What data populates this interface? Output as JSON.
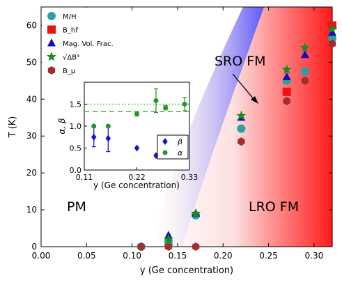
{
  "chart_data": [
    {
      "type": "scatter",
      "xlabel": "y (Ge concentration)",
      "ylabel": "T (K)",
      "xlim": [
        0.0,
        0.32
      ],
      "ylim": [
        0,
        65
      ],
      "xticks": [
        "0.00",
        "0.05",
        "0.10",
        "0.15",
        "0.20",
        "0.25",
        "0.30"
      ],
      "yticks": [
        "0",
        "10",
        "20",
        "30",
        "40",
        "50",
        "60"
      ],
      "grid": false,
      "legend_position": "top-left",
      "regions": [
        {
          "label": "PM",
          "x": 0.04,
          "y": 12
        },
        {
          "label": "LRO FM",
          "x": 0.285,
          "y": 12
        },
        {
          "label": "SRO FM",
          "x": 0.235,
          "y": 50
        }
      ],
      "series": [
        {
          "name": "M/H",
          "marker": "circle",
          "color": "#2ca0a0",
          "points": [
            [
              0.11,
              0.0
            ],
            [
              0.14,
              0.5
            ],
            [
              0.14,
              1.5
            ],
            [
              0.17,
              8.5
            ],
            [
              0.22,
              32.0
            ],
            [
              0.27,
              45.0
            ],
            [
              0.29,
              47.5
            ],
            [
              0.32,
              56.5
            ]
          ]
        },
        {
          "name": "B_hf",
          "marker": "square",
          "color": "#ee1111",
          "points": [
            [
              0.27,
              42.0
            ],
            [
              0.32,
              60.0
            ]
          ]
        },
        {
          "name": "Mag. Vol. Frac.",
          "marker": "triangle",
          "color": "#1010bb",
          "points": [
            [
              0.14,
              3.0
            ],
            [
              0.17,
              9.0
            ],
            [
              0.22,
              35.0
            ],
            [
              0.27,
              46.0
            ],
            [
              0.29,
              52.0
            ],
            [
              0.32,
              58.0
            ]
          ]
        },
        {
          "name": "√ΔB³",
          "marker": "star",
          "color": "#1a8c1a",
          "points": [
            [
              0.14,
              2.0
            ],
            [
              0.17,
              9.0
            ],
            [
              0.22,
              35.5
            ],
            [
              0.27,
              48.0
            ],
            [
              0.29,
              54.0
            ],
            [
              0.32,
              59.0
            ]
          ]
        },
        {
          "name": "B_μ",
          "marker": "hexagon",
          "color": "#a03030",
          "points": [
            [
              0.11,
              0.0
            ],
            [
              0.14,
              0.0
            ],
            [
              0.17,
              0.0
            ],
            [
              0.22,
              28.5
            ],
            [
              0.27,
              39.5
            ],
            [
              0.29,
              45.0
            ],
            [
              0.32,
              55.0
            ]
          ]
        }
      ]
    },
    {
      "type": "scatter",
      "xlabel": "y (Ge concentration)",
      "ylabel": "α, β",
      "xlim": [
        0.11,
        0.33
      ],
      "ylim": [
        0.0,
        2.0
      ],
      "xticks": [
        "0.11",
        "0.22",
        "0.33"
      ],
      "yticks": [
        "0.0",
        "0.5",
        "1.0",
        "1.5"
      ],
      "legend_position": "right",
      "reference_lines": [
        {
          "y": 1.5,
          "style": "dotted",
          "color": "#33aa33"
        },
        {
          "y": 1.33,
          "style": "dashed",
          "color": "#33aa33"
        }
      ],
      "series": [
        {
          "name": "β",
          "marker": "diamond",
          "color": "#1111dd",
          "points": [
            [
              0.13,
              0.75
            ],
            [
              0.16,
              0.72
            ],
            [
              0.22,
              0.5
            ],
            [
              0.26,
              0.33
            ],
            [
              0.28,
              0.33
            ],
            [
              0.32,
              0.33
            ]
          ],
          "errors": [
            0.22,
            0.3,
            0.0,
            0.0,
            0.0,
            0.0
          ]
        },
        {
          "name": "α",
          "marker": "circle",
          "color": "#229922",
          "points": [
            [
              0.13,
              1.0
            ],
            [
              0.16,
              1.0
            ],
            [
              0.22,
              1.28
            ],
            [
              0.26,
              1.58
            ],
            [
              0.28,
              1.42
            ],
            [
              0.32,
              1.5
            ]
          ],
          "errors": [
            0.0,
            0.0,
            0.05,
            0.27,
            0.05,
            0.15
          ]
        }
      ]
    }
  ]
}
